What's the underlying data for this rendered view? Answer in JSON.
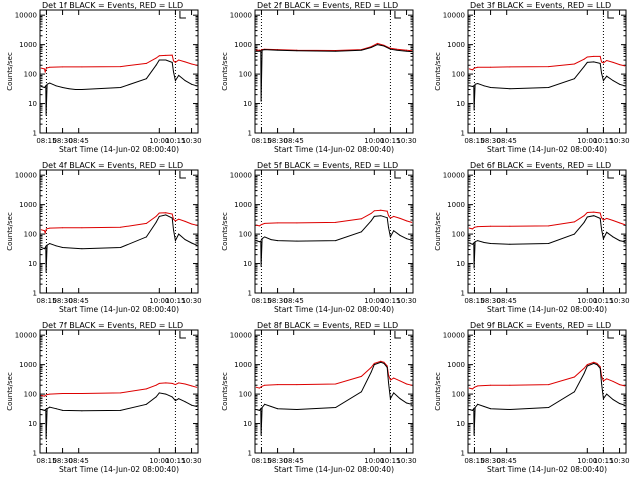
{
  "figure": {
    "start_time_label": "Start Time (14-Jun-02 08:00:40)",
    "ylabel": "Counts/sec",
    "colors": {
      "events": "#000000",
      "lld": "#dd0000",
      "axis": "#000000",
      "background": "#ffffff"
    }
  },
  "chart_data": {
    "type": "line",
    "yscale": "log",
    "ylim": [
      1,
      15000
    ],
    "xlim": [
      8.15,
      10.6
    ],
    "x_unit": "hours UT",
    "ytick_labels": [
      "1",
      "10",
      "100",
      "1000",
      "10000"
    ],
    "xtick_labels": [
      "08:15",
      "08:30",
      "08:45",
      "10:00",
      "10:15",
      "10:30"
    ],
    "xtick_values": [
      8.25,
      8.5,
      8.75,
      10.0,
      10.25,
      10.5
    ],
    "vlines": [
      8.25,
      10.25
    ],
    "legend": [
      "BLACK = Events",
      "RED = LLD"
    ],
    "panels": [
      {
        "title": "Det 1f BLACK = Events, RED = LLD",
        "series": [
          {
            "name": "Events",
            "x": [
              8.17,
              8.22,
              8.24,
              8.245,
              8.26,
              8.3,
              8.4,
              8.5,
              8.6,
              8.7,
              8.8,
              9.4,
              9.8,
              9.95,
              10.0,
              10.1,
              10.2,
              10.22,
              10.25,
              10.3,
              10.4,
              10.5,
              10.58
            ],
            "y": [
              38,
              35,
              40,
              4,
              45,
              50,
              40,
              35,
              32,
              30,
              30,
              35,
              70,
              200,
              300,
              300,
              250,
              120,
              60,
              90,
              60,
              45,
              40
            ]
          },
          {
            "name": "LLD",
            "x": [
              8.17,
              8.22,
              8.23,
              8.25,
              8.3,
              8.5,
              8.8,
              9.4,
              9.8,
              9.95,
              10.0,
              10.1,
              10.2,
              10.22,
              10.25,
              10.3,
              10.4,
              10.5,
              10.58
            ],
            "y": [
              160,
              150,
              120,
              160,
              170,
              175,
              175,
              180,
              230,
              350,
              420,
              430,
              440,
              280,
              250,
              300,
              260,
              220,
              200
            ]
          }
        ]
      },
      {
        "title": "Det 2f BLACK = Events, RED = LLD",
        "series": [
          {
            "name": "Events",
            "x": [
              8.17,
              8.22,
              8.24,
              8.245,
              8.26,
              8.3,
              8.5,
              8.8,
              9.4,
              9.8,
              9.95,
              10.05,
              10.15,
              10.25,
              10.35,
              10.5,
              10.58
            ],
            "y": [
              600,
              600,
              620,
              12,
              650,
              680,
              650,
              620,
              600,
              650,
              800,
              1000,
              900,
              700,
              650,
              600,
              580
            ]
          },
          {
            "name": "LLD",
            "x": [
              8.17,
              8.22,
              8.24,
              8.25,
              8.3,
              8.5,
              8.8,
              9.4,
              9.8,
              9.95,
              10.05,
              10.15,
              10.25,
              10.35,
              10.5,
              10.58
            ],
            "y": [
              650,
              650,
              600,
              680,
              700,
              680,
              650,
              630,
              680,
              850,
              1100,
              950,
              750,
              700,
              650,
              620
            ]
          }
        ]
      },
      {
        "title": "Det 3f BLACK = Events, RED = LLD",
        "series": [
          {
            "name": "Events",
            "x": [
              8.17,
              8.22,
              8.24,
              8.245,
              8.26,
              8.3,
              8.4,
              8.5,
              8.8,
              9.4,
              9.8,
              9.95,
              10.0,
              10.1,
              10.2,
              10.22,
              10.25,
              10.3,
              10.4,
              10.5,
              10.58
            ],
            "y": [
              40,
              38,
              40,
              6,
              45,
              48,
              40,
              35,
              32,
              35,
              70,
              180,
              250,
              260,
              230,
              110,
              60,
              85,
              60,
              45,
              40
            ]
          },
          {
            "name": "LLD",
            "x": [
              8.17,
              8.22,
              8.25,
              8.3,
              8.5,
              8.8,
              9.4,
              9.8,
              9.95,
              10.0,
              10.1,
              10.2,
              10.22,
              10.25,
              10.3,
              10.4,
              10.5,
              10.58
            ],
            "y": [
              150,
              140,
              160,
              170,
              170,
              175,
              180,
              220,
              320,
              380,
              400,
              400,
              260,
              240,
              290,
              250,
              210,
              190
            ]
          }
        ]
      },
      {
        "title": "Det 4f BLACK = Events, RED = LLD",
        "series": [
          {
            "name": "Events",
            "x": [
              8.17,
              8.22,
              8.24,
              8.245,
              8.26,
              8.3,
              8.4,
              8.5,
              8.8,
              9.4,
              9.8,
              9.95,
              10.0,
              10.1,
              10.2,
              10.22,
              10.25,
              10.3,
              10.4,
              10.5,
              10.58
            ],
            "y": [
              35,
              32,
              38,
              5,
              42,
              48,
              40,
              35,
              32,
              35,
              80,
              250,
              400,
              450,
              350,
              140,
              60,
              100,
              65,
              50,
              42
            ]
          },
          {
            "name": "LLD",
            "x": [
              8.17,
              8.22,
              8.23,
              8.25,
              8.3,
              8.5,
              8.8,
              9.4,
              9.8,
              9.95,
              10.0,
              10.1,
              10.2,
              10.22,
              10.25,
              10.3,
              10.4,
              10.5,
              10.58
            ],
            "y": [
              140,
              130,
              110,
              150,
              160,
              165,
              165,
              170,
              230,
              400,
              520,
              530,
              480,
              320,
              280,
              320,
              270,
              220,
              200
            ]
          }
        ]
      },
      {
        "title": "Det 5f BLACK = Events, RED = LLD",
        "series": [
          {
            "name": "Events",
            "x": [
              8.17,
              8.22,
              8.24,
              8.245,
              8.26,
              8.3,
              8.4,
              8.5,
              8.8,
              9.4,
              9.8,
              9.95,
              10.0,
              10.1,
              10.2,
              10.22,
              10.25,
              10.3,
              10.4,
              10.5,
              10.58
            ],
            "y": [
              60,
              55,
              58,
              8,
              70,
              80,
              65,
              60,
              58,
              60,
              120,
              280,
              400,
              420,
              360,
              170,
              80,
              130,
              90,
              70,
              62
            ]
          },
          {
            "name": "LLD",
            "x": [
              8.17,
              8.22,
              8.25,
              8.3,
              8.5,
              8.8,
              9.4,
              9.8,
              9.95,
              10.0,
              10.1,
              10.2,
              10.22,
              10.25,
              10.3,
              10.4,
              10.5,
              10.58
            ],
            "y": [
              200,
              190,
              210,
              230,
              240,
              240,
              250,
              330,
              500,
              620,
              650,
              600,
              420,
              350,
              400,
              340,
              280,
              250
            ]
          }
        ]
      },
      {
        "title": "Det 6f BLACK = Events, RED = LLD",
        "series": [
          {
            "name": "Events",
            "x": [
              8.17,
              8.22,
              8.24,
              8.245,
              8.26,
              8.3,
              8.4,
              8.5,
              8.8,
              9.4,
              9.8,
              9.95,
              10.0,
              10.1,
              10.2,
              10.22,
              10.25,
              10.3,
              10.4,
              10.5,
              10.58
            ],
            "y": [
              50,
              45,
              50,
              7,
              55,
              60,
              52,
              48,
              45,
              48,
              100,
              250,
              380,
              420,
              340,
              150,
              70,
              115,
              80,
              60,
              55
            ]
          },
          {
            "name": "LLD",
            "x": [
              8.17,
              8.22,
              8.25,
              8.3,
              8.5,
              8.8,
              9.4,
              9.8,
              9.95,
              10.0,
              10.1,
              10.2,
              10.22,
              10.25,
              10.3,
              10.4,
              10.5,
              10.58
            ],
            "y": [
              160,
              150,
              170,
              180,
              185,
              185,
              190,
              260,
              420,
              540,
              560,
              520,
              360,
              300,
              340,
              290,
              240,
              210
            ]
          }
        ]
      },
      {
        "title": "Det 7f BLACK = Events, RED = LLD",
        "series": [
          {
            "name": "Events",
            "x": [
              8.17,
              8.22,
              8.24,
              8.245,
              8.26,
              8.3,
              8.4,
              8.5,
              8.8,
              9.4,
              9.8,
              9.95,
              10.0,
              10.1,
              10.2,
              10.25,
              10.3,
              10.4,
              10.5,
              10.58
            ],
            "y": [
              30,
              28,
              30,
              3,
              32,
              36,
              32,
              28,
              27,
              28,
              45,
              80,
              110,
              100,
              80,
              60,
              70,
              55,
              42,
              38
            ]
          },
          {
            "name": "LLD",
            "x": [
              8.17,
              8.22,
              8.25,
              8.3,
              8.5,
              8.8,
              9.4,
              9.8,
              9.95,
              10.0,
              10.1,
              10.2,
              10.25,
              10.3,
              10.4,
              10.5,
              10.58
            ],
            "y": [
              90,
              85,
              95,
              100,
              105,
              105,
              110,
              150,
              200,
              230,
              240,
              230,
              210,
              240,
              220,
              190,
              170
            ]
          }
        ]
      },
      {
        "title": "Det 8f BLACK = Events, RED = LLD",
        "series": [
          {
            "name": "Events",
            "x": [
              8.17,
              8.22,
              8.24,
              8.245,
              8.26,
              8.3,
              8.4,
              8.5,
              8.8,
              9.4,
              9.8,
              9.95,
              10.0,
              10.1,
              10.15,
              10.2,
              10.22,
              10.25,
              10.3,
              10.4,
              10.5,
              10.58
            ],
            "y": [
              30,
              28,
              32,
              4,
              35,
              45,
              38,
              32,
              30,
              35,
              120,
              550,
              1000,
              1200,
              1100,
              800,
              250,
              70,
              110,
              70,
              50,
              45
            ]
          },
          {
            "name": "LLD",
            "x": [
              8.17,
              8.22,
              8.25,
              8.3,
              8.5,
              8.8,
              9.4,
              9.8,
              9.95,
              10.0,
              10.1,
              10.15,
              10.2,
              10.22,
              10.25,
              10.3,
              10.4,
              10.5,
              10.58
            ],
            "y": [
              170,
              160,
              180,
              200,
              210,
              210,
              220,
              400,
              800,
              1100,
              1300,
              1200,
              900,
              450,
              300,
              350,
              280,
              220,
              200
            ]
          }
        ]
      },
      {
        "title": "Det 9f BLACK = Events, RED = LLD",
        "series": [
          {
            "name": "Events",
            "x": [
              8.17,
              8.22,
              8.24,
              8.245,
              8.26,
              8.3,
              8.4,
              8.5,
              8.8,
              9.4,
              9.8,
              9.95,
              10.0,
              10.1,
              10.15,
              10.2,
              10.22,
              10.25,
              10.3,
              10.4,
              10.5,
              10.58
            ],
            "y": [
              30,
              28,
              32,
              4,
              35,
              45,
              38,
              32,
              30,
              35,
              120,
              500,
              900,
              1100,
              1000,
              750,
              240,
              70,
              100,
              65,
              48,
              42
            ]
          },
          {
            "name": "LLD",
            "x": [
              8.17,
              8.22,
              8.25,
              8.3,
              8.5,
              8.8,
              9.4,
              9.8,
              9.95,
              10.0,
              10.1,
              10.15,
              10.2,
              10.22,
              10.25,
              10.3,
              10.4,
              10.5,
              10.58
            ],
            "y": [
              160,
              150,
              170,
              190,
              200,
              200,
              210,
              380,
              750,
              1000,
              1200,
              1100,
              850,
              420,
              280,
              330,
              270,
              210,
              190
            ]
          }
        ]
      }
    ]
  }
}
